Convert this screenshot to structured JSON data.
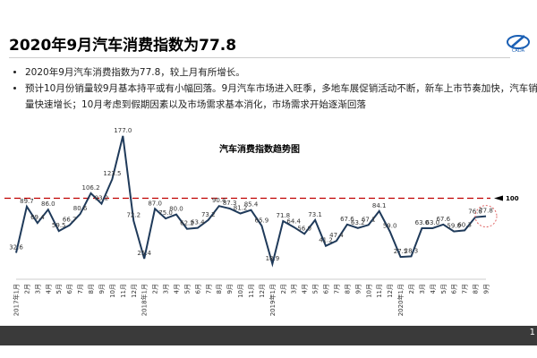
{
  "header": {
    "title": "2020年9月汽车消费指数为77.8"
  },
  "bullets": [
    "2020年9月汽车消费指数为77.8，较上月有所增长。",
    "预计10月份销量较9月基本持平或有小幅回落。9月汽车市场进入旺季，多地车展促销活动不断，新车上市节奏加快，汽车销量快速增长；10月考虑到假期因素以及市场需求基本消化，市场需求开始逐渐回落"
  ],
  "page_number": "1",
  "chart_data": {
    "type": "line",
    "title": "汽车消费指数趋势图",
    "color": "#1f3a5a",
    "categories": [
      "2017年1月",
      "2月",
      "3月",
      "4月",
      "5月",
      "6月",
      "7月",
      "8月",
      "9月",
      "10月",
      "11月",
      "12月",
      "2018年1月",
      "2月",
      "3月",
      "4月",
      "5月",
      "6月",
      "7月",
      "8月",
      "9月",
      "10月",
      "11月",
      "12月",
      "2019年1月",
      "2月",
      "3月",
      "4月",
      "5月",
      "6月",
      "7月",
      "8月",
      "9月",
      "10月",
      "11月",
      "12月",
      "2020年1月",
      "2月",
      "3月",
      "4月",
      "5月",
      "6月",
      "7月",
      "8月",
      "9月"
    ],
    "values": [
      32.6,
      89.7,
      69.4,
      86.0,
      59.5,
      66.7,
      80.6,
      106.2,
      93.2,
      123.5,
      177.0,
      72.2,
      25.4,
      87.0,
      75.0,
      80.0,
      62.2,
      63.4,
      73.2,
      90.4,
      87.3,
      81.2,
      85.4,
      65.9,
      18.9,
      71.8,
      64.4,
      56.0,
      73.1,
      41.2,
      47.4,
      67.6,
      63.2,
      67.1,
      84.1,
      59.0,
      27.5,
      28.3,
      63.0,
      63.0,
      67.6,
      59.0,
      60.3,
      76.6,
      77.8
    ],
    "value_labels": [
      "32.6",
      "89.7",
      "69.4",
      "86.0",
      "59.5",
      "66.7",
      "80.6",
      "106.2",
      "93.2",
      "123.5",
      "177.0",
      "72.2",
      "25.4",
      "87.0",
      "75.0",
      "80.0",
      "62.2",
      "63.4",
      "73.2",
      "90.4",
      "87.3",
      "81.2",
      "85.4",
      "65.9",
      "18.9",
      "71.8",
      "64.4",
      "56.0",
      "73.1",
      "41.2",
      "47.4",
      "67.6",
      "63.2",
      "67.1",
      "84.1",
      "59.0",
      "27.5",
      "28.3",
      "63.0",
      "63.0",
      "67.6",
      "59.0",
      "60.3",
      "76.6",
      "77.8"
    ],
    "ylim": [
      0,
      200
    ],
    "reference_line": {
      "value": 100,
      "color": "#c00000"
    }
  }
}
